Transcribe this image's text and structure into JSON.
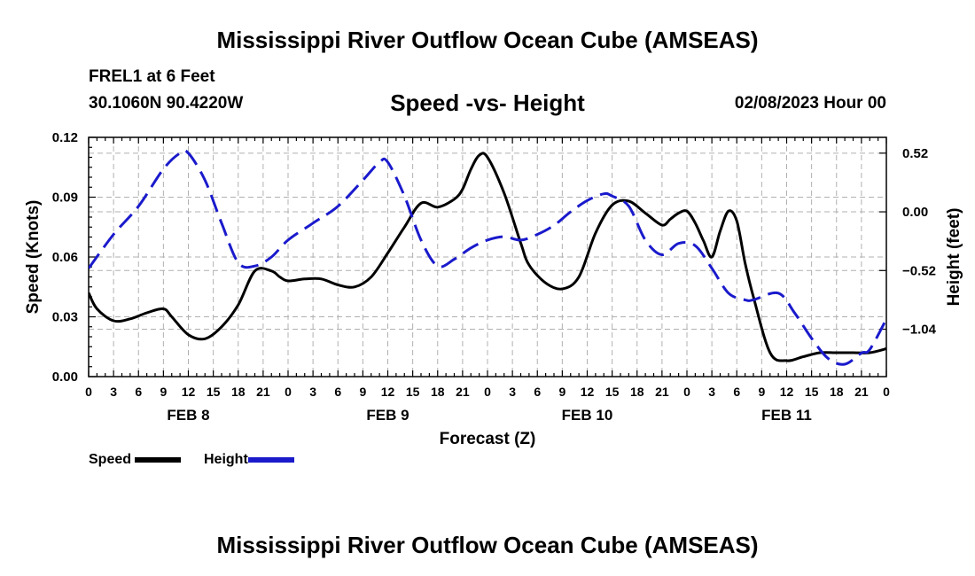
{
  "header": {
    "title": "Mississippi River Outflow Ocean Cube (AMSEAS)",
    "station": "FREL1 at 6 Feet",
    "coords": "30.1060N  90.4220W",
    "subtitle": "Speed -vs- Height",
    "datetime": "02/08/2023 Hour 00"
  },
  "footer": {
    "title": "Mississippi River Outflow Ocean Cube (AMSEAS)"
  },
  "legend": {
    "speed_label": "Speed",
    "height_label": "Height"
  },
  "colors": {
    "speed": "#000000",
    "height": "#1a1acc",
    "grid": "#b0b0b0"
  },
  "chart_data": {
    "type": "line",
    "xlabel": "Forecast (Z)",
    "ylabel": "Speed (Knots)",
    "y2label": "Height (feet)",
    "xlim": [
      0,
      96
    ],
    "ylim": [
      0,
      0.12
    ],
    "y2lim": [
      -1.46,
      0.66
    ],
    "x_tick_labels": [
      "0",
      "3",
      "6",
      "9",
      "12",
      "15",
      "18",
      "21",
      "0",
      "3",
      "6",
      "9",
      "12",
      "15",
      "18",
      "21",
      "0",
      "3",
      "6",
      "9",
      "12",
      "15",
      "18",
      "21",
      "0",
      "3",
      "6",
      "9",
      "12",
      "15",
      "18",
      "21",
      "0"
    ],
    "y_ticks": [
      0,
      0.03,
      0.06,
      0.09,
      0.12
    ],
    "y_tick_labels": [
      "0.00",
      "0.03",
      "0.06",
      "0.09",
      "0.12"
    ],
    "y2_ticks": [
      0.52,
      0.0,
      -0.52,
      -1.04
    ],
    "y2_tick_labels": [
      "0.52",
      "0.00",
      "−0.52",
      "−1.04"
    ],
    "day_labels": [
      {
        "x": 12,
        "label": "FEB 8"
      },
      {
        "x": 36,
        "label": "FEB 9"
      },
      {
        "x": 60,
        "label": "FEB 10"
      },
      {
        "x": 84,
        "label": "FEB 11"
      }
    ],
    "series": [
      {
        "name": "Speed",
        "axis": "left",
        "style": "solid",
        "x": [
          0,
          1,
          3,
          5,
          7,
          9,
          10,
          12,
          14,
          16,
          18,
          20,
          22,
          23,
          24,
          26,
          28,
          30,
          32,
          34,
          36,
          38,
          40,
          42,
          44,
          45,
          46,
          47,
          48,
          50,
          52,
          53,
          55,
          57,
          59,
          61,
          63,
          65,
          67,
          69,
          70,
          71,
          72,
          73,
          74,
          75,
          76,
          77,
          78,
          79,
          80,
          82,
          84,
          86,
          88,
          90,
          92,
          94,
          96
        ],
        "values": [
          0.042,
          0.034,
          0.028,
          0.029,
          0.032,
          0.034,
          0.03,
          0.021,
          0.019,
          0.025,
          0.036,
          0.053,
          0.053,
          0.05,
          0.048,
          0.049,
          0.049,
          0.046,
          0.045,
          0.05,
          0.062,
          0.075,
          0.087,
          0.085,
          0.089,
          0.094,
          0.104,
          0.111,
          0.11,
          0.092,
          0.067,
          0.056,
          0.047,
          0.044,
          0.05,
          0.072,
          0.086,
          0.088,
          0.082,
          0.076,
          0.079,
          0.082,
          0.083,
          0.077,
          0.068,
          0.06,
          0.073,
          0.083,
          0.078,
          0.057,
          0.04,
          0.012,
          0.008,
          0.01,
          0.012,
          0.012,
          0.012,
          0.012,
          0.014
        ]
      },
      {
        "name": "Height",
        "axis": "right",
        "style": "dashed",
        "x": [
          0,
          3,
          6,
          9,
          11,
          12,
          14,
          16,
          18,
          20,
          22,
          24,
          27,
          30,
          33,
          35,
          36,
          38,
          40,
          42,
          44,
          46,
          48,
          50,
          52,
          54,
          56,
          58,
          60,
          62,
          63,
          65,
          67,
          69,
          71,
          73,
          75,
          77,
          79,
          80,
          83,
          85,
          87,
          89,
          91,
          93,
          94,
          96
        ],
        "values": [
          -0.5,
          -0.2,
          0.05,
          0.38,
          0.52,
          0.52,
          0.28,
          -0.1,
          -0.45,
          -0.48,
          -0.4,
          -0.25,
          -0.1,
          0.05,
          0.28,
          0.44,
          0.44,
          0.14,
          -0.25,
          -0.48,
          -0.42,
          -0.32,
          -0.25,
          -0.22,
          -0.25,
          -0.2,
          -0.12,
          0.0,
          0.1,
          0.16,
          0.14,
          0.05,
          -0.25,
          -0.38,
          -0.28,
          -0.3,
          -0.5,
          -0.72,
          -0.78,
          -0.78,
          -0.72,
          -0.9,
          -1.12,
          -1.3,
          -1.35,
          -1.25,
          -1.22,
          -0.95
        ]
      }
    ]
  }
}
